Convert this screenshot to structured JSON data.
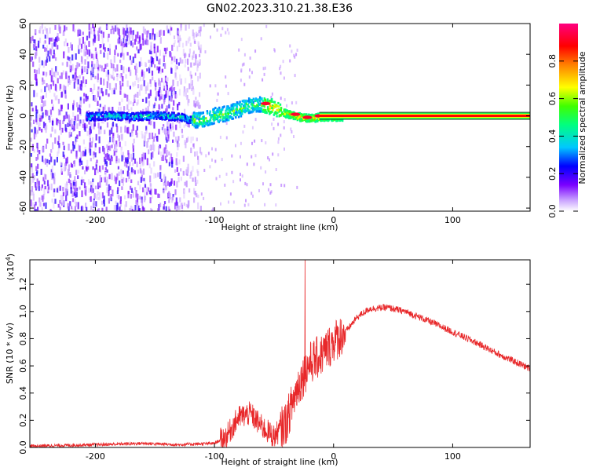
{
  "title": "GN02.2023.310.21.38.E36",
  "chart_data": [
    {
      "type": "heatmap",
      "xlabel": "Height of straight line (km)",
      "ylabel": "Frequency (Hz)",
      "xlim": [
        -255,
        165
      ],
      "ylim": [
        -62,
        60
      ],
      "xticks": [
        -200,
        -100,
        0,
        100
      ],
      "yticks": [
        60,
        40,
        20,
        0,
        -20,
        -40,
        -60
      ],
      "colorbar": {
        "label": "Normalized spectral amplitude",
        "range": [
          0,
          1
        ],
        "ticks": [
          "0.0",
          "0.2",
          "0.4",
          "0.6",
          "0.8"
        ],
        "colors": [
          "#ffffff",
          "#c8a0ff",
          "#7a00ff",
          "#0000ff",
          "#00c8ff",
          "#00ff80",
          "#40ff00",
          "#ffff00",
          "#ff8000",
          "#ff0000",
          "#ff0080"
        ]
      },
      "ridge": [
        [
          -205,
          0
        ],
        [
          -190,
          1
        ],
        [
          -170,
          0
        ],
        [
          -150,
          1
        ],
        [
          -130,
          0
        ],
        [
          -120,
          -2
        ],
        [
          -110,
          -2
        ],
        [
          -100,
          1
        ],
        [
          -90,
          2
        ],
        [
          -80,
          5
        ],
        [
          -70,
          8
        ],
        [
          -60,
          8
        ],
        [
          -50,
          6
        ],
        [
          -40,
          2
        ],
        [
          -30,
          0
        ],
        [
          -20,
          -1
        ],
        [
          -10,
          0
        ],
        [
          0,
          0
        ],
        [
          100,
          0
        ],
        [
          165,
          0
        ]
      ],
      "noise_edge_x": -120
    },
    {
      "type": "line",
      "xlabel": "Height of straight line (km)",
      "ylabel": "SNR (10 * v/v)",
      "yscale_label": "(x10",
      "yscale_exp": "4",
      "yscale_close": ")",
      "xlim": [
        -255,
        165
      ],
      "ylim": [
        0,
        1.38
      ],
      "xticks": [
        -200,
        -100,
        0,
        100
      ],
      "yticks": [
        "0.0",
        "0.2",
        "0.4",
        "0.6",
        "0.8",
        "1.0",
        "1.2"
      ],
      "color": "#e8282a",
      "envelope": [
        [
          -255,
          0.01
        ],
        [
          -200,
          0.02
        ],
        [
          -160,
          0.03
        ],
        [
          -130,
          0.02
        ],
        [
          -100,
          0.03
        ],
        [
          -90,
          0.08
        ],
        [
          -80,
          0.22
        ],
        [
          -70,
          0.25
        ],
        [
          -60,
          0.15
        ],
        [
          -50,
          0.08
        ],
        [
          -40,
          0.18
        ],
        [
          -30,
          0.45
        ],
        [
          -20,
          0.62
        ],
        [
          -10,
          0.68
        ],
        [
          0,
          0.78
        ],
        [
          10,
          0.85
        ],
        [
          20,
          0.96
        ],
        [
          30,
          1.02
        ],
        [
          45,
          1.03
        ],
        [
          60,
          1.0
        ],
        [
          80,
          0.93
        ],
        [
          100,
          0.85
        ],
        [
          120,
          0.77
        ],
        [
          140,
          0.68
        ],
        [
          165,
          0.58
        ]
      ],
      "spike": [
        -24,
        1.38
      ]
    }
  ]
}
